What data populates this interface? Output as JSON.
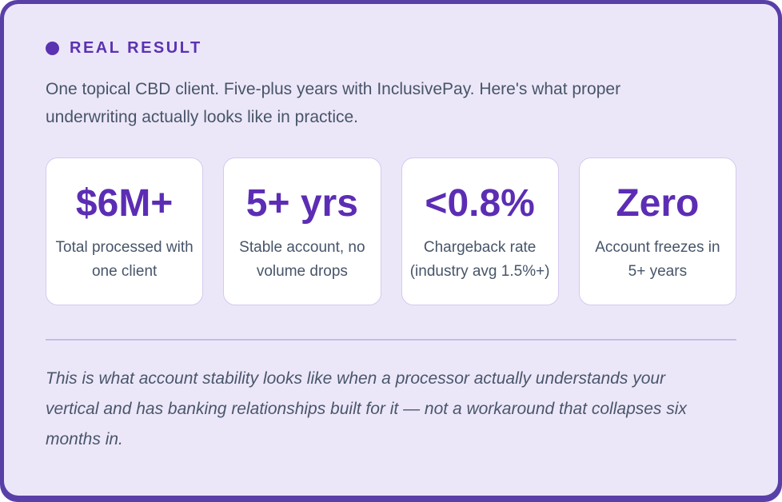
{
  "panel": {
    "badge": {
      "label": "REAL RESULT"
    },
    "intro": "One topical CBD client. Five-plus years with InclusivePay. Here's what proper underwriting actually looks like in practice.",
    "stats": [
      {
        "value": "$6M+",
        "label": "Total processed with one client"
      },
      {
        "value": "5+ yrs",
        "label": "Stable account, no volume drops"
      },
      {
        "value": "<0.8%",
        "label": "Chargeback rate (industry avg 1.5%+)"
      },
      {
        "value": "Zero",
        "label": "Account freezes in 5+ years"
      }
    ],
    "footnote": "This is what account stability looks like when a processor actually understands your vertical and has banking relationships built for it — not a workaround that collapses six months in.",
    "colors": {
      "accent_purple": "#5c2db4",
      "frame_purple": "#5940a8",
      "panel_lavender": "#ece7f8",
      "stat_card_border": "#d5c9ef",
      "body_text": "#475569",
      "divider": "#c7bbe7"
    }
  }
}
